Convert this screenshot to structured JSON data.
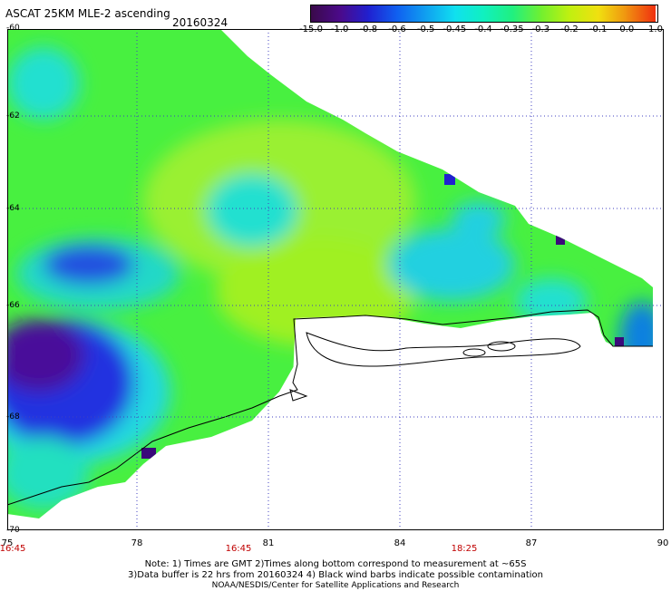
{
  "header": {
    "title": "ASCAT 25KM MLE-2 ascending",
    "date": "20160324"
  },
  "colorbar": {
    "labels": [
      "-15.0",
      "-1.0",
      "-0.8",
      "-0.6",
      "-0.5",
      "-0.45",
      "-0.4",
      "-0.35",
      "-0.3",
      "-0.2",
      "-0.1",
      "0.0",
      "1.0"
    ],
    "colors": [
      "#3a0a4a",
      "#4b0a8a",
      "#2020d0",
      "#1060f0",
      "#10a0f0",
      "#10e0f0",
      "#10f0c0",
      "#20f080",
      "#70f030",
      "#c0f010",
      "#f0e010",
      "#f09010",
      "#f03010"
    ]
  },
  "map": {
    "lat_labels": [
      "-60",
      "-62",
      "-64",
      "-66",
      "-68",
      "-70"
    ],
    "lon_labels": [
      "75",
      "78",
      "81",
      "84",
      "87",
      "90"
    ],
    "time_labels": [
      "16:45",
      "16:45",
      "18:25"
    ]
  },
  "footer": {
    "note_line1": "Note: 1) Times are GMT 2)Times along bottom correspond to measurement at ~65S",
    "note_line2": "3)Data buffer is 22 hrs from 20160324 4) Black wind barbs indicate possible contamination",
    "note_line3": "NOAA/NESDIS/Center for Satellite Applications and Research"
  }
}
